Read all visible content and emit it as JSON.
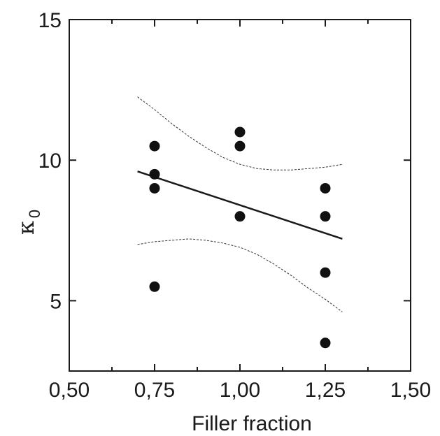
{
  "chart_data": {
    "type": "scatter",
    "title": "",
    "xlabel": "Filler fraction",
    "ylabel": "κ",
    "ylabel_subscript": "0",
    "xlim": [
      0.5,
      1.5
    ],
    "ylim": [
      2.5,
      15
    ],
    "x_ticks": [
      {
        "value": 0.5,
        "label": "0,50"
      },
      {
        "value": 0.75,
        "label": "0,75"
      },
      {
        "value": 1.0,
        "label": "1,00"
      },
      {
        "value": 1.25,
        "label": "1,25"
      },
      {
        "value": 1.5,
        "label": "1,50"
      }
    ],
    "y_ticks": [
      {
        "value": 5,
        "label": "5"
      },
      {
        "value": 10,
        "label": "10"
      },
      {
        "value": 15,
        "label": "15"
      }
    ],
    "grid": false,
    "points": [
      {
        "x": 0.75,
        "y": 10.5
      },
      {
        "x": 0.75,
        "y": 9.5
      },
      {
        "x": 0.75,
        "y": 9.0
      },
      {
        "x": 0.75,
        "y": 5.5
      },
      {
        "x": 1.0,
        "y": 11.0
      },
      {
        "x": 1.0,
        "y": 10.5
      },
      {
        "x": 1.0,
        "y": 8.0
      },
      {
        "x": 1.25,
        "y": 9.0
      },
      {
        "x": 1.25,
        "y": 8.0
      },
      {
        "x": 1.25,
        "y": 6.0
      },
      {
        "x": 1.25,
        "y": 3.5
      }
    ],
    "fit_line": {
      "x": [
        0.7,
        1.3
      ],
      "y": [
        9.6,
        7.2
      ]
    },
    "confidence_upper": {
      "x": [
        0.7,
        0.75,
        0.8,
        0.85,
        0.9,
        0.95,
        1.0,
        1.05,
        1.1,
        1.15,
        1.2,
        1.25,
        1.3
      ],
      "y": [
        12.25,
        11.8,
        11.3,
        10.85,
        10.45,
        10.1,
        9.85,
        9.7,
        9.65,
        9.65,
        9.7,
        9.75,
        9.85
      ]
    },
    "confidence_lower": {
      "x": [
        0.7,
        0.75,
        0.8,
        0.85,
        0.9,
        0.95,
        1.0,
        1.05,
        1.1,
        1.15,
        1.2,
        1.25,
        1.3
      ],
      "y": [
        7.0,
        7.1,
        7.15,
        7.2,
        7.15,
        7.05,
        6.9,
        6.65,
        6.3,
        5.9,
        5.45,
        5.05,
        4.6
      ]
    }
  }
}
